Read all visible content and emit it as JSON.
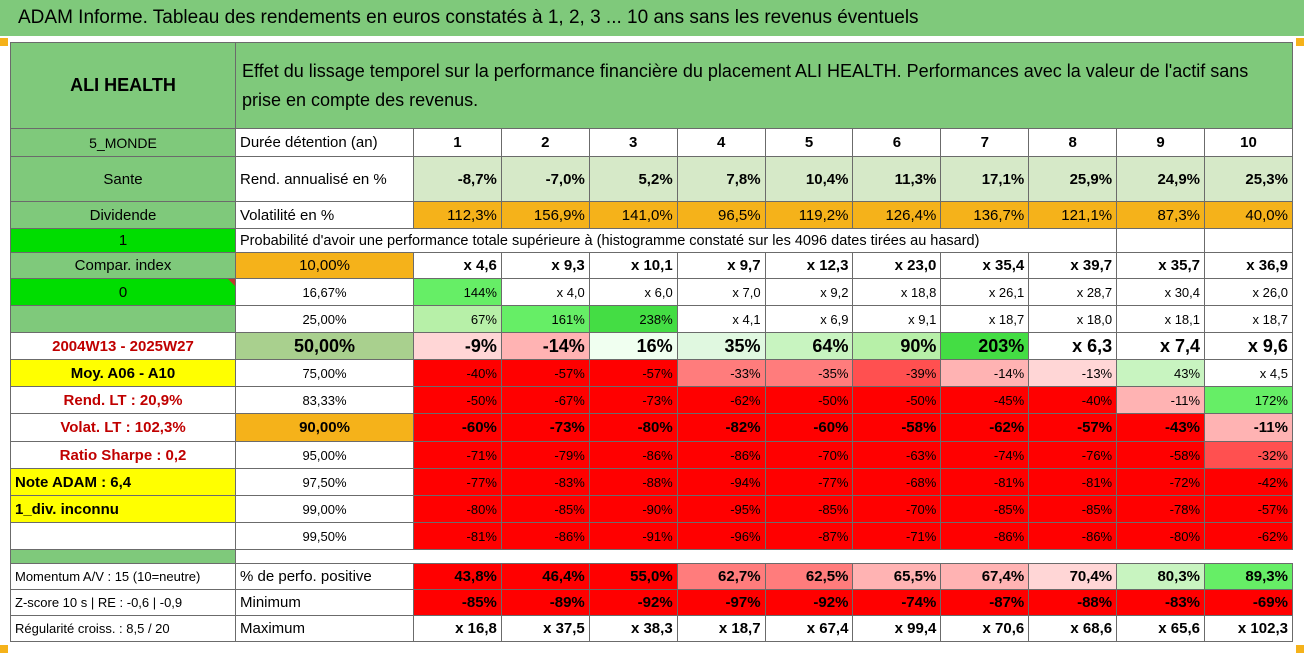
{
  "title": "ADAM Informe. Tableau des rendements en euros constatés à 1, 2, 3 ... 10 ans sans les revenus éventuels",
  "header": {
    "asset": "ALI HEALTH",
    "description": "Effet du lissage temporel sur la performance financière du placement ALI HEALTH. Performances avec la valeur de l'actif sans prise en compte des revenus."
  },
  "rows": {
    "duration": {
      "side": "5_MONDE",
      "label": "Durée détention (an)",
      "values": [
        "1",
        "2",
        "3",
        "4",
        "5",
        "6",
        "7",
        "8",
        "9",
        "10"
      ]
    },
    "rend": {
      "side": "Sante",
      "label": "Rend. annualisé en %",
      "values": [
        "-8,7%",
        "-7,0%",
        "5,2%",
        "7,8%",
        "10,4%",
        "11,3%",
        "17,1%",
        "25,9%",
        "24,9%",
        "25,3%"
      ]
    },
    "vol": {
      "side": "Dividende",
      "label": "Volatilité en %",
      "values": [
        "112,3%",
        "156,9%",
        "141,0%",
        "96,5%",
        "119,2%",
        "126,4%",
        "136,7%",
        "121,1%",
        "87,3%",
        "40,0%"
      ]
    },
    "prob_header": {
      "side": "1",
      "label": "Probabilité d'avoir une performance totale supérieure à (histogramme constaté sur les 4096 dates tirées au hasard)"
    },
    "probs": [
      {
        "side": "Compar. index",
        "pct": "10,00%",
        "values": [
          "x 4,6",
          "x 9,3",
          "x 10,1",
          "x 9,7",
          "x 12,3",
          "x 23,0",
          "x 35,4",
          "x 39,7",
          "x 35,7",
          "x 36,9"
        ]
      },
      {
        "side": "0",
        "pct": "16,67%",
        "values": [
          "144%",
          "x 4,0",
          "x 6,0",
          "x 7,0",
          "x 9,2",
          "x 18,8",
          "x 26,1",
          "x 28,7",
          "x 30,4",
          "x 26,0"
        ]
      },
      {
        "side": "",
        "pct": "25,00%",
        "values": [
          "67%",
          "161%",
          "238%",
          "x 4,1",
          "x 6,9",
          "x 9,1",
          "x 18,7",
          "x 18,0",
          "x 18,1",
          "x 18,7"
        ]
      },
      {
        "side": "2004W13 - 2025W27",
        "pct": "50,00%",
        "values": [
          "-9%",
          "-14%",
          "16%",
          "35%",
          "64%",
          "90%",
          "203%",
          "x 6,3",
          "x 7,4",
          "x 9,6"
        ]
      },
      {
        "side": "Moy. A06 - A10",
        "pct": "75,00%",
        "values": [
          "-40%",
          "-57%",
          "-57%",
          "-33%",
          "-35%",
          "-39%",
          "-14%",
          "-13%",
          "43%",
          "x 4,5"
        ]
      },
      {
        "side": "Rend. LT :    20,9%",
        "pct": "83,33%",
        "values": [
          "-50%",
          "-67%",
          "-73%",
          "-62%",
          "-50%",
          "-50%",
          "-45%",
          "-40%",
          "-11%",
          "172%"
        ]
      },
      {
        "side": "Volat. LT :    102,3%",
        "pct": "90,00%",
        "values": [
          "-60%",
          "-73%",
          "-80%",
          "-82%",
          "-60%",
          "-58%",
          "-62%",
          "-57%",
          "-43%",
          "-11%"
        ]
      },
      {
        "side": "Ratio Sharpe :    0,2",
        "pct": "95,00%",
        "values": [
          "-71%",
          "-79%",
          "-86%",
          "-86%",
          "-70%",
          "-63%",
          "-74%",
          "-76%",
          "-58%",
          "-32%"
        ]
      },
      {
        "side": "Note ADAM : 6,4",
        "pct": "97,50%",
        "values": [
          "-77%",
          "-83%",
          "-88%",
          "-94%",
          "-77%",
          "-68%",
          "-81%",
          "-81%",
          "-72%",
          "-42%"
        ]
      },
      {
        "side": "1_div. inconnu",
        "pct": "99,00%",
        "values": [
          "-80%",
          "-85%",
          "-90%",
          "-95%",
          "-85%",
          "-70%",
          "-85%",
          "-85%",
          "-78%",
          "-57%"
        ]
      },
      {
        "side": "",
        "pct": "99,50%",
        "values": [
          "-81%",
          "-86%",
          "-91%",
          "-96%",
          "-87%",
          "-71%",
          "-86%",
          "-86%",
          "-80%",
          "-62%"
        ]
      }
    ],
    "bottom": [
      {
        "side": "Momentum A/V : 15 (10=neutre)",
        "label": "% de perfo. positive",
        "values": [
          "43,8%",
          "46,4%",
          "55,0%",
          "62,7%",
          "62,5%",
          "65,5%",
          "67,4%",
          "70,4%",
          "80,3%",
          "89,3%"
        ]
      },
      {
        "side": "Z-score 10 s | RE : -0,6 | -0,9",
        "label": "Minimum",
        "values": [
          "-85%",
          "-89%",
          "-92%",
          "-97%",
          "-92%",
          "-74%",
          "-87%",
          "-88%",
          "-83%",
          "-69%"
        ]
      },
      {
        "side": "Régularité croiss. : 8,5 / 20",
        "label": "Maximum",
        "values": [
          "x 16,8",
          "x 37,5",
          "x 38,3",
          "x 18,7",
          "x 67,4",
          "x 99,4",
          "x 70,6",
          "x 68,6",
          "x 65,6",
          "x 102,3"
        ]
      }
    ]
  },
  "colors": {
    "header_green": "#7fc97b",
    "light_green": "#d6e9c8",
    "mid_green": "#a9d08e",
    "bright_green": "#00dd00",
    "orange": "#f5b21a",
    "yellow": "#ffff00",
    "red": "#ff0000",
    "dark_red_text": "#c00000"
  }
}
